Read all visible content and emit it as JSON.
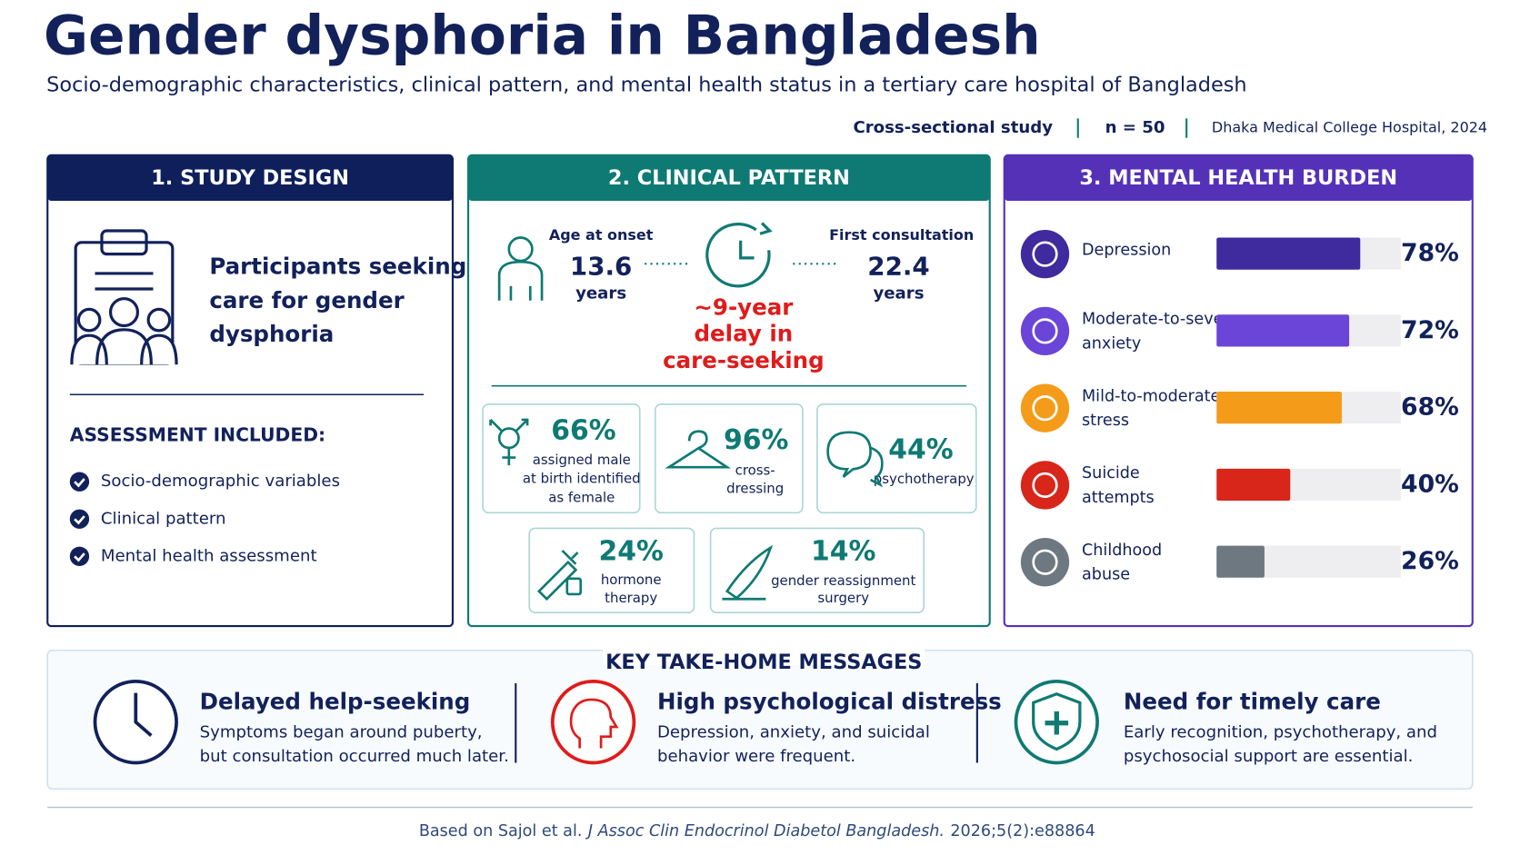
{
  "header": {
    "title": "Gender dysphoria in Bangladesh",
    "subtitle": "Socio-demographic characteristics, clinical pattern, and mental health status in a tertiary care hospital of Bangladesh",
    "meta": [
      "Cross-sectional study",
      "n = 50",
      "Dhaka Medical College Hospital, 2024"
    ]
  },
  "study_design": {
    "heading": "1. STUDY DESIGN",
    "participants": [
      "Participants seeking",
      "care for gender",
      "dysphoria"
    ],
    "assessment_heading": "ASSESSMENT INCLUDED:",
    "assessments": [
      "Socio-demographic variables",
      "Clinical pattern",
      "Mental health assessment"
    ]
  },
  "clinical_pattern": {
    "heading": "2. CLINICAL PATTERN",
    "onset": {
      "label": "Age at onset",
      "value": 13.6,
      "unit": "years"
    },
    "consultation": {
      "label": "First consultation",
      "value": 22.4,
      "unit": "years"
    },
    "delay": [
      "~9-year",
      "delay in",
      "care-seeking"
    ],
    "stats": [
      {
        "value": "66%",
        "label": [
          "assigned male",
          "at birth identified",
          "as female"
        ]
      },
      {
        "value": "96%",
        "label": [
          "cross-",
          "dressing"
        ]
      },
      {
        "value": "44%",
        "label": [
          "psychotherapy"
        ]
      },
      {
        "value": "24%",
        "label": [
          "hormone",
          "therapy"
        ]
      },
      {
        "value": "14%",
        "label": [
          "gender reassignment",
          "surgery"
        ]
      }
    ]
  },
  "mental_health": {
    "heading": "3. MENTAL HEALTH BURDEN",
    "items": [
      {
        "name": [
          "Depression"
        ],
        "value": 78,
        "label": "78%",
        "color": "#3f2a9e"
      },
      {
        "name": [
          "Moderate-to-severe",
          "anxiety"
        ],
        "value": 72,
        "label": "72%",
        "color": "#6a45d8"
      },
      {
        "name": [
          "Mild-to-moderate",
          "stress"
        ],
        "value": 68,
        "label": "68%",
        "color": "#f59b1a"
      },
      {
        "name": [
          "Suicide",
          "attempts"
        ],
        "value": 40,
        "label": "40%",
        "color": "#d8261a"
      },
      {
        "name": [
          "Childhood",
          "abuse"
        ],
        "value": 26,
        "label": "26%",
        "color": "#6e7880"
      }
    ]
  },
  "take_home": {
    "heading": "KEY TAKE-HOME MESSAGES",
    "messages": [
      {
        "title": "Delayed help-seeking",
        "text": [
          "Symptoms began around puberty,",
          "but consultation occurred much later."
        ]
      },
      {
        "title": "High psychological distress",
        "text": [
          "Depression, anxiety, and suicidal",
          "behavior were frequent."
        ]
      },
      {
        "title": "Need for timely care",
        "text": [
          "Early recognition, psychotherapy, and",
          "psychosocial support are essential."
        ]
      }
    ]
  },
  "footer": {
    "prefix": "Based on Sajol et al.",
    "journal": "J Assoc Clin Endocrinol Diabetol Bangladesh.",
    "ref": "2026;5(2):e88864"
  }
}
